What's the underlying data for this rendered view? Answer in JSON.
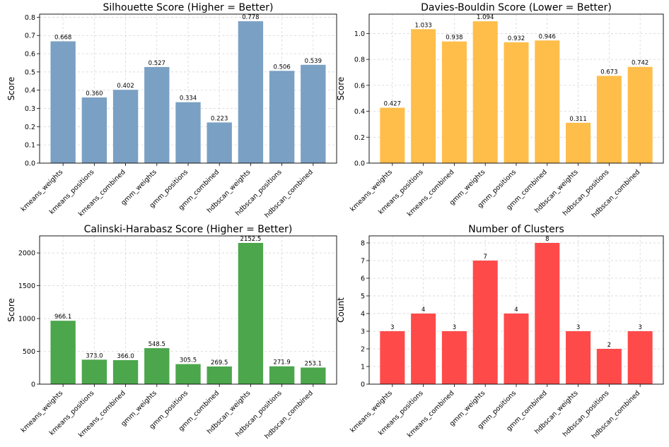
{
  "chart_data": [
    {
      "type": "bar",
      "title": "Silhouette Score (Higher = Better)",
      "xlabel": "",
      "ylabel": "Score",
      "categories": [
        "kmeans_weights",
        "kmeans_positions",
        "kmeans_combined",
        "gmm_weights",
        "gmm_positions",
        "gmm_combined",
        "hdbscan_weights",
        "hdbscan_positions",
        "hdbscan_combined"
      ],
      "values": [
        0.668,
        0.36,
        0.402,
        0.527,
        0.334,
        0.223,
        0.778,
        0.506,
        0.539
      ],
      "value_labels": [
        "0.668",
        "0.360",
        "0.402",
        "0.527",
        "0.334",
        "0.223",
        "0.778",
        "0.506",
        "0.539"
      ],
      "ylim": [
        0,
        0.817
      ],
      "yticks": [
        0.0,
        0.1,
        0.2,
        0.3,
        0.4,
        0.5,
        0.6,
        0.7,
        0.8
      ],
      "ytick_labels": [
        "0.0",
        "0.1",
        "0.2",
        "0.3",
        "0.4",
        "0.5",
        "0.6",
        "0.7",
        "0.8"
      ],
      "color": "#7aa0c4",
      "grid": true
    },
    {
      "type": "bar",
      "title": "Davies-Bouldin Score (Lower = Better)",
      "xlabel": "",
      "ylabel": "Score",
      "categories": [
        "kmeans_weights",
        "kmeans_positions",
        "kmeans_combined",
        "gmm_weights",
        "gmm_positions",
        "gmm_combined",
        "hdbscan_weights",
        "hdbscan_positions",
        "hdbscan_combined"
      ],
      "values": [
        0.427,
        1.033,
        0.938,
        1.094,
        0.932,
        0.946,
        0.311,
        0.673,
        0.742
      ],
      "value_labels": [
        "0.427",
        "1.033",
        "0.938",
        "1.094",
        "0.932",
        "0.946",
        "0.311",
        "0.673",
        "0.742"
      ],
      "ylim": [
        0,
        1.149
      ],
      "yticks": [
        0.0,
        0.2,
        0.4,
        0.6,
        0.8,
        1.0
      ],
      "ytick_labels": [
        "0.0",
        "0.2",
        "0.4",
        "0.6",
        "0.8",
        "1.0"
      ],
      "color": "#ffbe4a",
      "grid": true
    },
    {
      "type": "bar",
      "title": "Calinski-Harabasz Score (Higher = Better)",
      "xlabel": "",
      "ylabel": "Score",
      "categories": [
        "kmeans_weights",
        "kmeans_positions",
        "kmeans_combined",
        "gmm_weights",
        "gmm_positions",
        "gmm_combined",
        "hdbscan_weights",
        "hdbscan_positions",
        "hdbscan_combined"
      ],
      "values": [
        966.1,
        373.0,
        366.0,
        548.5,
        305.5,
        269.5,
        2152.5,
        271.9,
        253.1
      ],
      "value_labels": [
        "966.1",
        "373.0",
        "366.0",
        "548.5",
        "305.5",
        "269.5",
        "2152.5",
        "271.9",
        "253.1"
      ],
      "ylim": [
        0,
        2260
      ],
      "yticks": [
        0,
        500,
        1000,
        1500,
        2000
      ],
      "ytick_labels": [
        "0",
        "500",
        "1000",
        "1500",
        "2000"
      ],
      "color": "#4ca64c",
      "grid": true
    },
    {
      "type": "bar",
      "title": "Number of Clusters",
      "xlabel": "",
      "ylabel": "Count",
      "categories": [
        "kmeans_weights",
        "kmeans_positions",
        "kmeans_combined",
        "gmm_weights",
        "gmm_positions",
        "gmm_combined",
        "hdbscan_weights",
        "hdbscan_positions",
        "hdbscan_combined"
      ],
      "values": [
        3,
        4,
        3,
        7,
        4,
        8,
        3,
        2,
        3
      ],
      "value_labels": [
        "3",
        "4",
        "3",
        "7",
        "4",
        "8",
        "3",
        "2",
        "3"
      ],
      "ylim": [
        0,
        8.4
      ],
      "yticks": [
        0,
        1,
        2,
        3,
        4,
        5,
        6,
        7,
        8
      ],
      "ytick_labels": [
        "0",
        "1",
        "2",
        "3",
        "4",
        "5",
        "6",
        "7",
        "8"
      ],
      "color": "#ff4a4a",
      "grid": true
    }
  ]
}
